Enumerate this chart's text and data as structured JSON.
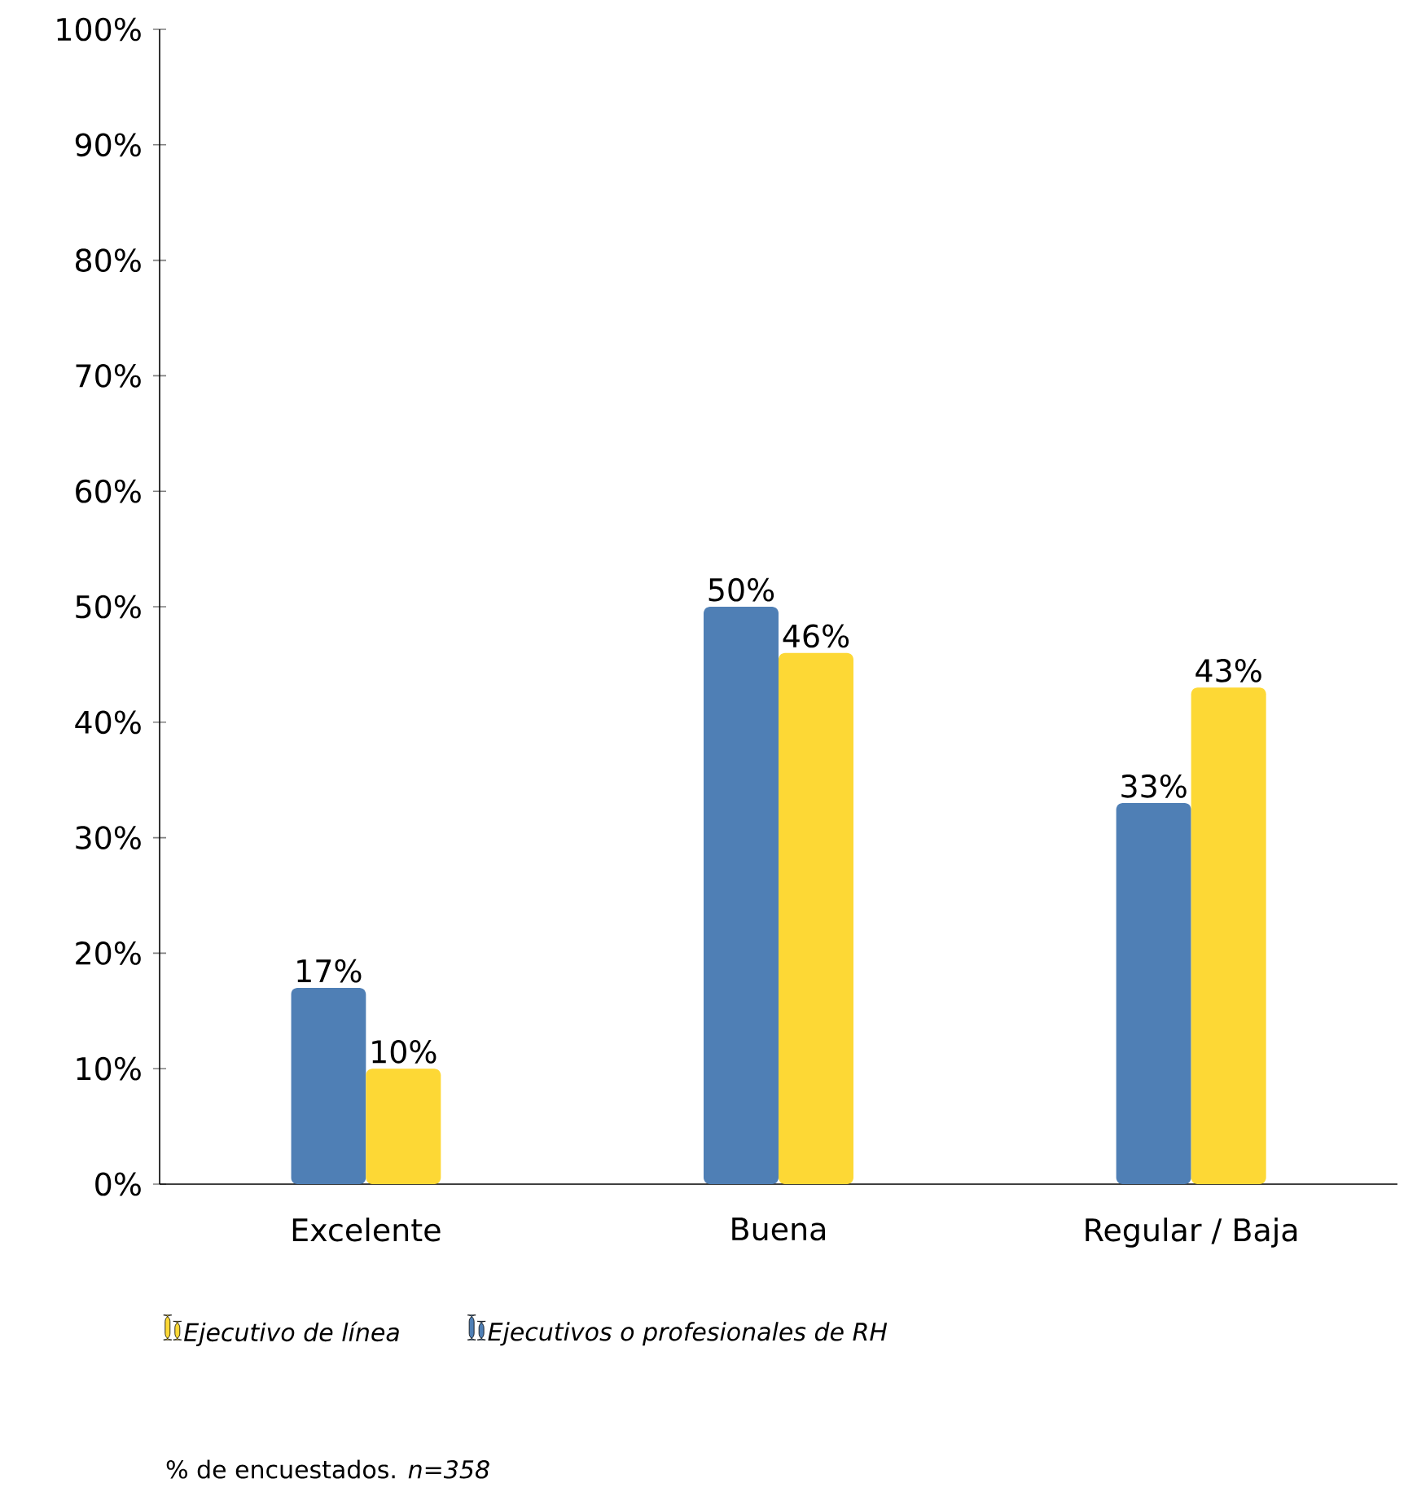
{
  "chart_data": {
    "type": "bar",
    "categories": [
      "Excelente",
      "Buena",
      "Regular / Baja"
    ],
    "series": [
      {
        "name": "Ejecutivos o profesionales de RH",
        "color": "#4f7fb5",
        "values": [
          17,
          50,
          33
        ],
        "value_labels": [
          "17%",
          "50%",
          "33%"
        ]
      },
      {
        "name": "Ejecutivo de línea",
        "color": "#fdd835",
        "values": [
          10,
          46,
          43
        ],
        "value_labels": [
          "10%",
          "46%",
          "43%"
        ]
      }
    ],
    "ylim": [
      0,
      100
    ],
    "yticks": [
      {
        "value": 0,
        "label": "0%"
      },
      {
        "value": 10,
        "label": "10%"
      },
      {
        "value": 20,
        "label": "20%"
      },
      {
        "value": 30,
        "label": "30%"
      },
      {
        "value": 40,
        "label": "40%"
      },
      {
        "value": 50,
        "label": "50%"
      },
      {
        "value": 60,
        "label": "60%"
      },
      {
        "value": 70,
        "label": "70%"
      },
      {
        "value": 80,
        "label": "80%"
      },
      {
        "value": 90,
        "label": "90%"
      },
      {
        "value": 100,
        "label": "100%"
      }
    ],
    "legend": "bottom",
    "grid": false,
    "annotations": [
      "% de encuestados. *n=358*"
    ]
  }
}
